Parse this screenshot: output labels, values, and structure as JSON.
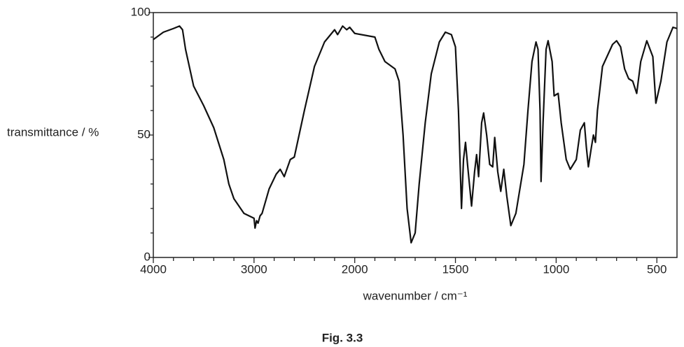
{
  "chart_data": {
    "type": "line",
    "caption": "Fig. 3.3",
    "y_label": "transmittance / %",
    "x_label": "wavenumber / cm⁻¹",
    "xlim": [
      4000,
      400
    ],
    "xscale": {
      "type": "piecewise",
      "break": 2000,
      "factor": 2
    },
    "xticks": [
      4000,
      3000,
      2000,
      1500,
      1000,
      500
    ],
    "xminorticks": [
      3800,
      3600,
      3400,
      3200,
      2800,
      2600,
      2400,
      2200,
      1900,
      1800,
      1700,
      1600,
      1400,
      1300,
      1200,
      1100,
      900,
      800,
      700,
      600
    ],
    "ylim": [
      0,
      100
    ],
    "yticks": [
      0,
      50,
      100
    ],
    "yminorticks": [
      10,
      20,
      30,
      40,
      60,
      70,
      80,
      90
    ],
    "series": [
      {
        "color": "#111111",
        "x": [
          4000,
          3900,
          3800,
          3740,
          3710,
          3680,
          3600,
          3500,
          3400,
          3300,
          3250,
          3200,
          3100,
          3000,
          2990,
          2975,
          2960,
          2940,
          2920,
          2850,
          2780,
          2740,
          2700,
          2640,
          2600,
          2500,
          2400,
          2300,
          2200,
          2170,
          2120,
          2080,
          2050,
          2000,
          1900,
          1880,
          1850,
          1800,
          1780,
          1760,
          1740,
          1720,
          1700,
          1680,
          1650,
          1620,
          1580,
          1550,
          1520,
          1500,
          1485,
          1470,
          1460,
          1450,
          1440,
          1420,
          1405,
          1395,
          1385,
          1370,
          1360,
          1345,
          1330,
          1315,
          1305,
          1290,
          1275,
          1260,
          1245,
          1225,
          1200,
          1180,
          1160,
          1140,
          1120,
          1100,
          1090,
          1080,
          1075,
          1065,
          1050,
          1040,
          1020,
          1010,
          990,
          975,
          950,
          930,
          900,
          880,
          860,
          850,
          840,
          825,
          815,
          805,
          795,
          770,
          720,
          700,
          680,
          660,
          640,
          620,
          600,
          580,
          550,
          520,
          505,
          480,
          450,
          420,
          400
        ],
        "values": [
          89,
          92,
          93.5,
          94.5,
          93,
          85,
          70,
          62,
          53,
          40,
          30,
          24,
          18,
          16,
          12,
          15,
          14,
          17,
          18,
          28,
          34,
          36,
          33,
          40,
          41,
          60,
          78,
          88,
          93,
          91,
          94.5,
          93,
          94,
          91.5,
          90,
          85,
          80,
          77,
          72,
          50,
          20,
          6,
          10,
          30,
          55,
          75,
          88,
          92,
          91,
          86,
          60,
          20,
          40,
          47,
          38,
          21,
          35,
          42,
          33,
          55,
          59,
          50,
          38,
          37,
          49,
          35,
          27,
          36,
          25,
          13,
          18,
          28,
          38,
          60,
          80,
          88,
          85,
          60,
          31,
          55,
          85,
          88.5,
          80,
          66,
          67,
          55,
          40,
          36,
          40,
          52,
          55,
          45,
          37,
          45,
          50,
          47,
          60,
          78,
          87,
          88.5,
          86,
          77,
          73,
          72,
          67,
          80,
          88.5,
          82,
          63,
          72,
          88,
          94,
          93.5
        ]
      }
    ]
  }
}
